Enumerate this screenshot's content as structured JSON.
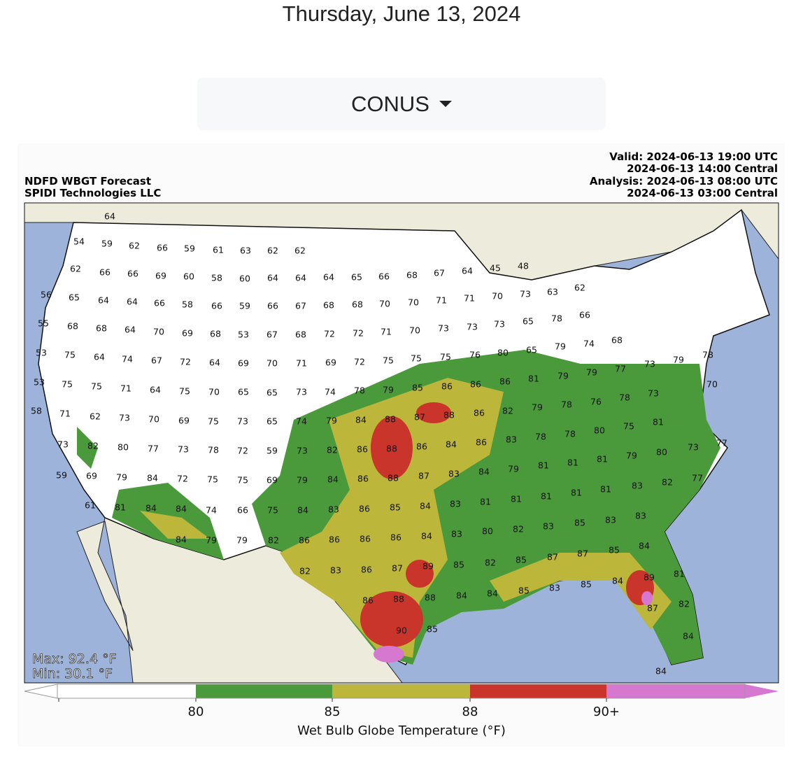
{
  "header": {
    "date": "Thursday, June 13, 2024",
    "dropdown": "CONUS"
  },
  "map": {
    "title": "NDFD WBGT Forecast",
    "credit": "SPIDI Technologies LLC",
    "valid_utc": "Valid: 2024-06-13 19:00 UTC",
    "valid_central": "2024-06-13 14:00 Central",
    "analysis_utc": "Analysis: 2024-06-13 08:00 UTC",
    "analysis_central": "2024-06-13 03:00 Central",
    "max": "Max: 92.4 °F",
    "min": "Min: 30.1 °F",
    "labels": [
      64,
      54,
      59,
      62,
      66,
      59,
      61,
      63,
      62,
      62,
      62,
      66,
      66,
      69,
      60,
      58,
      60,
      64,
      64,
      64,
      65,
      66,
      68,
      67,
      64,
      45,
      48,
      56,
      65,
      64,
      64,
      66,
      58,
      66,
      59,
      66,
      67,
      68,
      68,
      70,
      70,
      71,
      71,
      70,
      73,
      63,
      62,
      55,
      68,
      68,
      64,
      70,
      69,
      68,
      53,
      67,
      68,
      72,
      72,
      71,
      70,
      73,
      73,
      73,
      65,
      78,
      66,
      53,
      75,
      64,
      74,
      67,
      72,
      64,
      69,
      70,
      71,
      69,
      72,
      75,
      75,
      75,
      76,
      80,
      65,
      79,
      74,
      68,
      53,
      75,
      75,
      71,
      64,
      75,
      70,
      65,
      65,
      73,
      74,
      78,
      79,
      85,
      86,
      86,
      86,
      81,
      79,
      79,
      77,
      73,
      79,
      78,
      58,
      71,
      62,
      73,
      70,
      69,
      75,
      73,
      65,
      74,
      79,
      84,
      88,
      87,
      88,
      86,
      82,
      79,
      78,
      76,
      78,
      73,
      70,
      73,
      82,
      80,
      77,
      73,
      78,
      72,
      59,
      73,
      82,
      86,
      88,
      86,
      84,
      86,
      83,
      78,
      78,
      80,
      75,
      81,
      77,
      73,
      59,
      69,
      79,
      84,
      72,
      75,
      75,
      69,
      79,
      84,
      86,
      88,
      87,
      83,
      84,
      79,
      81,
      81,
      81,
      79,
      80,
      77,
      82,
      83,
      61,
      81,
      84,
      84,
      74,
      66,
      75,
      84,
      83,
      86,
      85,
      84,
      83,
      81,
      81,
      81,
      81,
      81,
      84,
      79,
      79,
      82,
      86,
      86,
      86,
      86,
      84,
      83,
      80,
      82,
      83,
      85,
      83,
      83,
      82,
      83,
      86,
      87,
      89,
      85,
      82,
      85,
      87,
      87,
      85,
      84,
      86,
      88,
      88,
      84,
      84,
      85,
      83,
      85,
      84,
      89,
      81,
      90,
      85,
      87,
      82,
      84,
      84
    ]
  },
  "colorbar": {
    "title": "Wet Bulb Globe Temperature (°F)",
    "ticks": [
      80,
      85,
      88,
      {
        "value": 90,
        "label": "90+"
      }
    ],
    "colors": [
      "#ffffff",
      "#4a9a3b",
      "#bcb63a",
      "#c9342b",
      "#d677d0"
    ]
  }
}
